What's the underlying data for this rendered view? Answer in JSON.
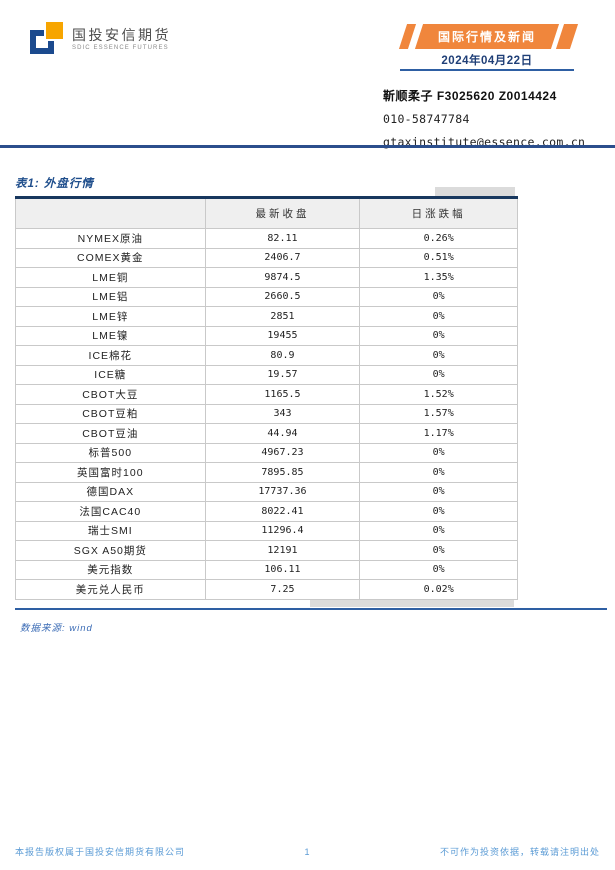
{
  "logo": {
    "company_cn": "国投安信期货",
    "company_en": "SDIC ESSENCE FUTURES"
  },
  "header": {
    "banner_title": "国际行情及新闻",
    "date": "2024年04月22日",
    "analyst": "靳顺柔子 F3025620 Z0014424",
    "phone": "010-58747784",
    "email": "gtaxinstitute@essence.com.cn"
  },
  "table": {
    "title": "表1: 外盘行情",
    "columns": [
      "",
      "最新收盘",
      "日涨跌幅"
    ],
    "rows": [
      {
        "name": "NYMEX原油",
        "close": "82.11",
        "change": "0.26%"
      },
      {
        "name": "COMEX黄金",
        "close": "2406.7",
        "change": "0.51%"
      },
      {
        "name": "LME铜",
        "close": "9874.5",
        "change": "1.35%"
      },
      {
        "name": "LME铝",
        "close": "2660.5",
        "change": "0%"
      },
      {
        "name": "LME锌",
        "close": "2851",
        "change": "0%"
      },
      {
        "name": "LME镍",
        "close": "19455",
        "change": "0%"
      },
      {
        "name": "ICE棉花",
        "close": "80.9",
        "change": "0%"
      },
      {
        "name": "ICE糖",
        "close": "19.57",
        "change": "0%"
      },
      {
        "name": "CBOT大豆",
        "close": "1165.5",
        "change": "1.52%"
      },
      {
        "name": "CBOT豆粕",
        "close": "343",
        "change": "1.57%"
      },
      {
        "name": "CBOT豆油",
        "close": "44.94",
        "change": "1.17%"
      },
      {
        "name": "标普500",
        "close": "4967.23",
        "change": "0%"
      },
      {
        "name": "英国富时100",
        "close": "7895.85",
        "change": "0%"
      },
      {
        "name": "德国DAX",
        "close": "17737.36",
        "change": "0%"
      },
      {
        "name": "法国CAC40",
        "close": "8022.41",
        "change": "0%"
      },
      {
        "name": "瑞士SMI",
        "close": "11296.4",
        "change": "0%"
      },
      {
        "name": "SGX A50期货",
        "close": "12191",
        "change": "0%"
      },
      {
        "name": "美元指数",
        "close": "106.11",
        "change": "0%"
      },
      {
        "name": "美元兑人民币",
        "close": "7.25",
        "change": "0.02%"
      }
    ]
  },
  "source_note": "数据来源: wind",
  "footer": {
    "left": "本报告版权属于国投安信期货有限公司",
    "page": "1",
    "right": "不可作为投资依据，转载请注明出处"
  },
  "colors": {
    "brand_orange": "#F0863C",
    "brand_navy": "#1F4E8C",
    "rule_blue": "#2E5FA3",
    "footer_blue": "#5B9BD5",
    "logo_orange": "#F7A500",
    "logo_blue": "#1B4A8E"
  }
}
